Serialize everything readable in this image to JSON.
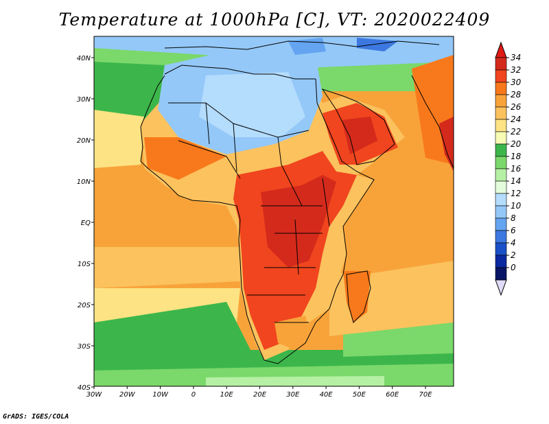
{
  "title": "Temperature at 1000hPa [C], VT: 2020022409",
  "credit": "GrADS: IGES/COLA",
  "map": {
    "lon_range": [
      -30,
      75
    ],
    "lat_range": [
      -40,
      45
    ],
    "lon_labels": [
      "30W",
      "20W",
      "10W",
      "0",
      "10E",
      "20E",
      "30E",
      "40E",
      "50E",
      "60E",
      "70E"
    ],
    "lat_labels": [
      "40N",
      "30N",
      "20N",
      "10N",
      "EQ",
      "10S",
      "20S",
      "30S",
      "40S"
    ]
  },
  "colorbar": {
    "levels": [
      "34",
      "32",
      "30",
      "28",
      "26",
      "24",
      "22",
      "20",
      "18",
      "16",
      "14",
      "12",
      "10",
      "8",
      "6",
      "4",
      "2",
      "0"
    ],
    "colors": [
      "#d42a1c",
      "#f0451e",
      "#f8791b",
      "#f8a33a",
      "#fbc25e",
      "#fde383",
      "#f6fcb4",
      "#3cb64b",
      "#7bd86b",
      "#b5f0a4",
      "#e4fbdc",
      "#b4dcfc",
      "#94c8f8",
      "#64a4f0",
      "#3c78e0",
      "#1a50c8",
      "#0c28a0",
      "#081464"
    ],
    "top_color": "#e01a14",
    "bottom_color": "#e0dcf8"
  }
}
